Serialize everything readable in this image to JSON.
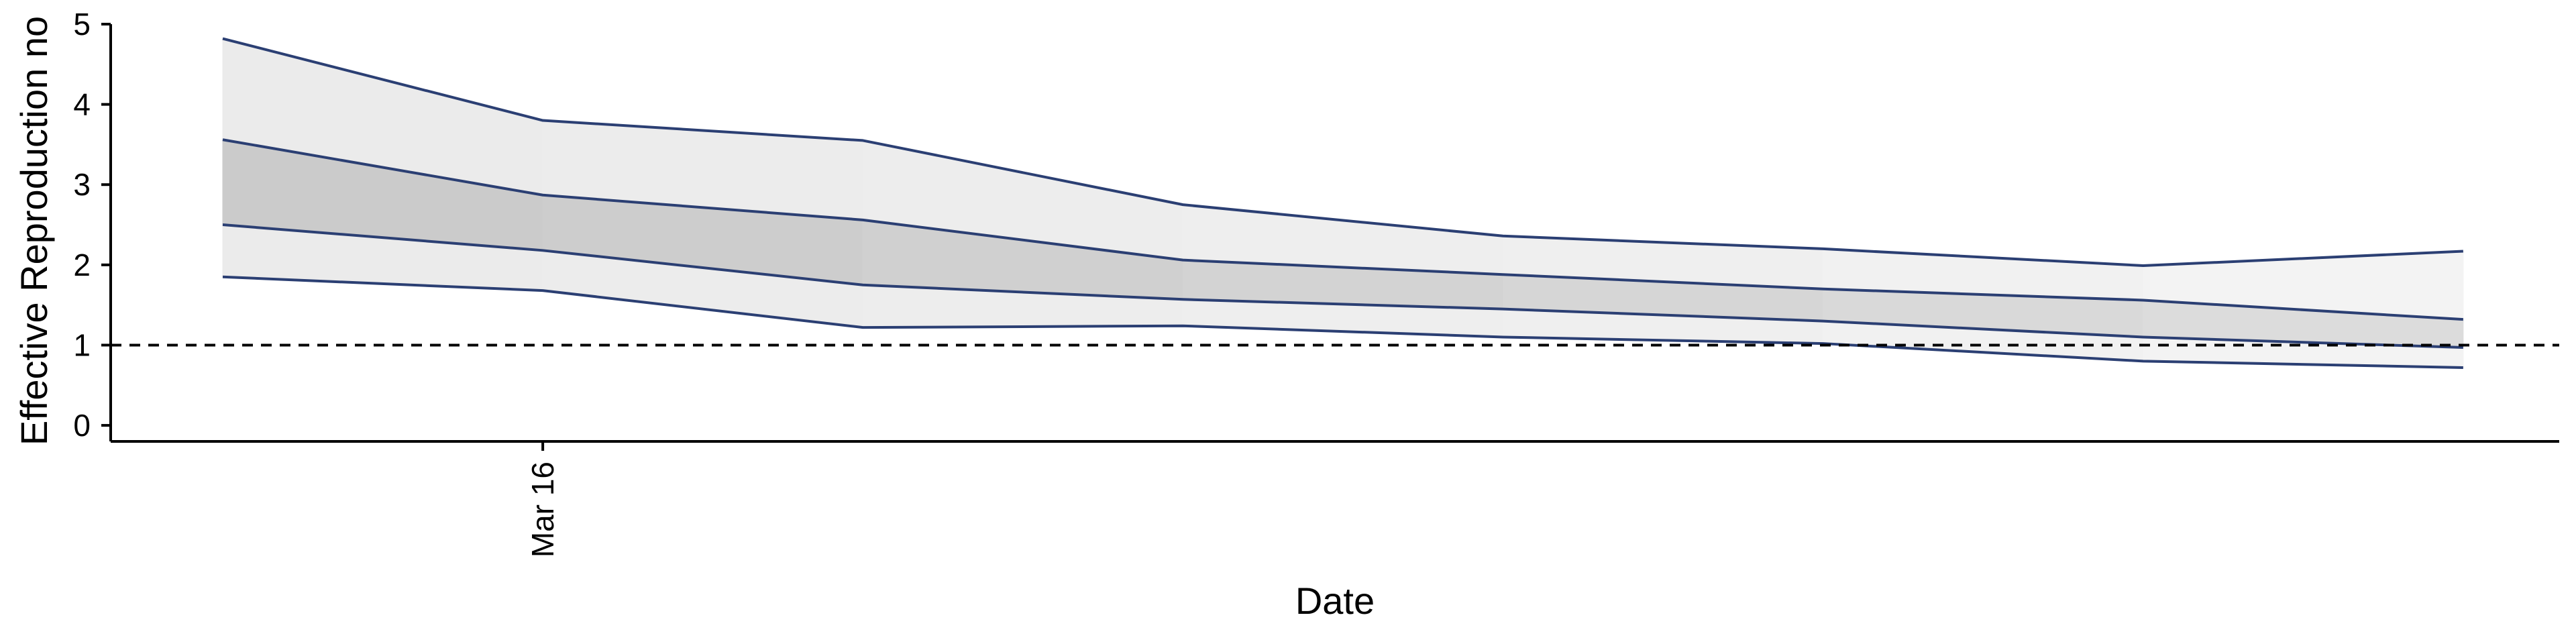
{
  "chart_data": {
    "type": "area",
    "xlabel": "Date",
    "ylabel": "Effective Reproduction no",
    "x": [
      1,
      2,
      3,
      4,
      5,
      6,
      7,
      8
    ],
    "xlim": [
      0.65,
      8.3
    ],
    "ylim": [
      -0.2,
      5.05
    ],
    "x_ticks": [
      {
        "x": 2,
        "label": "Mar 16"
      }
    ],
    "y_ticks": [
      0,
      1,
      2,
      3,
      4,
      5
    ],
    "reference_line": {
      "y": 1,
      "style": "dashed"
    },
    "bands": [
      {
        "interval": "outer",
        "lower": [
          1.85,
          1.68,
          1.22,
          1.24,
          1.1,
          1.02,
          0.8,
          0.72
        ],
        "upper": [
          4.82,
          3.8,
          3.55,
          2.75,
          2.36,
          2.2,
          1.99,
          2.17
        ]
      },
      {
        "interval": "inner",
        "lower": [
          2.5,
          2.18,
          1.75,
          1.57,
          1.45,
          1.3,
          1.1,
          0.97
        ],
        "upper": [
          3.56,
          2.87,
          2.56,
          2.06,
          1.88,
          1.7,
          1.56,
          1.32
        ]
      }
    ],
    "colors": {
      "outer_fill": [
        "#ebebeb",
        "#ececec",
        "#ededed",
        "#eeeeee",
        "#efefef",
        "#f1f1f1",
        "#f3f3f3"
      ],
      "inner_fill": [
        "#cbcbcb",
        "#cdcdcd",
        "#d0d0d0",
        "#d3d3d3",
        "#d6d6d6",
        "#d9d9d9",
        "#dcdcdc"
      ],
      "line": "#2b3f73",
      "axis": "#000000"
    },
    "grid": false
  }
}
